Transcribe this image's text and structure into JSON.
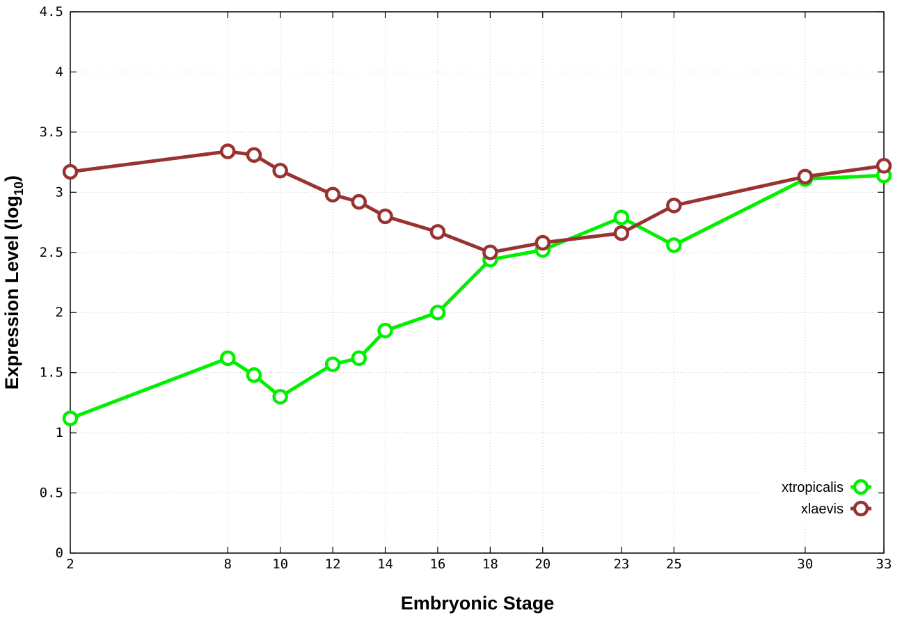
{
  "chart_data": {
    "type": "line",
    "xlabel": "Embryonic Stage",
    "ylabel": "Expression Level (log",
    "ylabel_subscript": "10",
    "ylabel_suffix": ")",
    "x_ticks": [
      2,
      8,
      10,
      12,
      14,
      16,
      18,
      20,
      23,
      25,
      30,
      33
    ],
    "y_ticks": [
      "0",
      "0.5",
      "1",
      "1.5",
      "2",
      "2.5",
      "3",
      "3.5",
      "4",
      "4.5"
    ],
    "xlim": [
      2,
      33
    ],
    "ylim": [
      0,
      4.5
    ],
    "grid": true,
    "legend_position": "bottom-right",
    "x": [
      2,
      8,
      9,
      10,
      12,
      13,
      14,
      16,
      18,
      20,
      23,
      25,
      30,
      33
    ],
    "series": [
      {
        "name": "xtropicalis",
        "color": "#00f000",
        "values": [
          1.12,
          1.62,
          1.48,
          1.3,
          1.57,
          1.62,
          1.85,
          2.0,
          2.44,
          2.52,
          2.79,
          2.56,
          3.11,
          3.14
        ]
      },
      {
        "name": "xlaevis",
        "color": "#993333",
        "values": [
          3.17,
          3.34,
          3.31,
          3.18,
          2.98,
          2.92,
          2.8,
          2.67,
          2.5,
          2.58,
          2.66,
          2.89,
          3.13,
          3.22
        ]
      }
    ]
  }
}
